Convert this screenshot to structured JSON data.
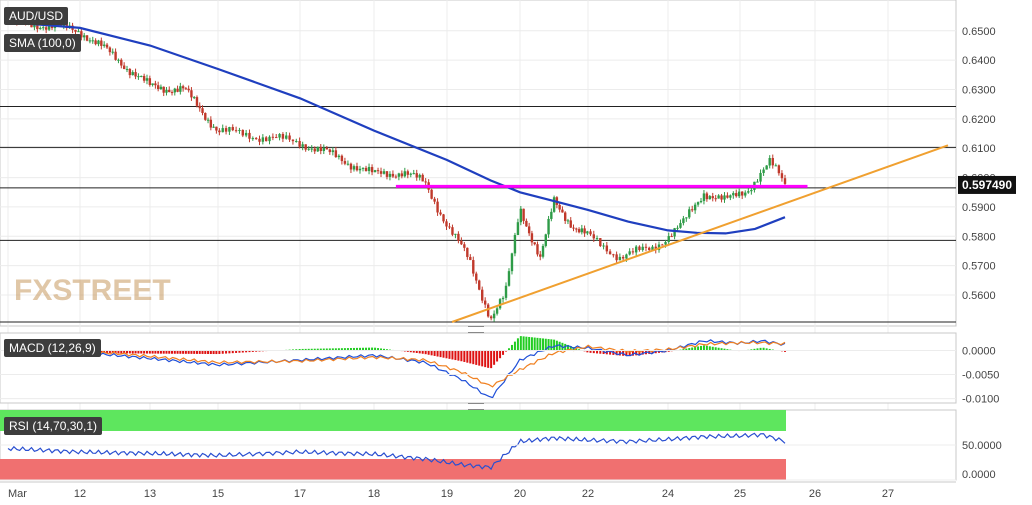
{
  "colors": {
    "price_up": "#2e9b47",
    "price_down": "#c0392b",
    "sma": "#1f3fbf",
    "trendline": "#f0a030",
    "resistance": "#ff00ff",
    "macd_line": "#1f4fd8",
    "signal_line": "#f08020",
    "hist_pos": "#22cc22",
    "hist_neg": "#dd1111",
    "rsi_line": "#2a4fd0",
    "rsi_overbought_zone": "#5ee65e",
    "rsi_oversold_zone": "#f07070",
    "price_badge_bg": "#111111"
  },
  "main_panel": {
    "symbol_label": "AUD/USD",
    "sma_label": "SMA (100,0)",
    "watermark": "FXSTREET",
    "current_price": "0.597490",
    "y_ticks": [
      "0.6500",
      "0.6400",
      "0.6300",
      "0.6200",
      "0.6100",
      "0.6000",
      "0.5900",
      "0.5800",
      "0.5700",
      "0.5600"
    ]
  },
  "macd_panel": {
    "label": "MACD (12,26,9)",
    "y_ticks": [
      "0.0000",
      "-0.0050",
      "-0.0100"
    ]
  },
  "rsi_panel": {
    "label": "RSI (14,70,30,1)",
    "y_ticks": [
      "50.0000",
      "0.0000"
    ]
  },
  "x_axis": {
    "ticks": [
      "Mar",
      "12",
      "13",
      "15",
      "17",
      "18",
      "19",
      "20",
      "22",
      "24",
      "25",
      "26",
      "27"
    ]
  },
  "chart_data": [
    {
      "type": "candlestick",
      "title": "AUD/USD",
      "ylim": [
        0.5508,
        0.653
      ],
      "x": [
        "Mar",
        "12",
        "13",
        "15",
        "17",
        "18",
        "19",
        "20",
        "22",
        "24",
        "25",
        "26",
        "27"
      ],
      "close_path": [
        [
          0.0,
          0.6528
        ],
        [
          0.5,
          0.652
        ],
        [
          1.0,
          0.65
        ],
        [
          1.5,
          0.641
        ],
        [
          2.0,
          0.631
        ],
        [
          2.5,
          0.63
        ],
        [
          3.0,
          0.616
        ],
        [
          3.5,
          0.614
        ],
        [
          4.0,
          0.612
        ],
        [
          4.5,
          0.607
        ],
        [
          5.0,
          0.601
        ],
        [
          5.4,
          0.602
        ],
        [
          5.7,
          0.598
        ],
        [
          6.0,
          0.584
        ],
        [
          6.3,
          0.572
        ],
        [
          6.6,
          0.552
        ],
        [
          6.8,
          0.56
        ],
        [
          7.0,
          0.59
        ],
        [
          7.3,
          0.572
        ],
        [
          7.5,
          0.592
        ],
        [
          7.8,
          0.583
        ],
        [
          8.0,
          0.58
        ],
        [
          8.4,
          0.573
        ],
        [
          8.8,
          0.576
        ],
        [
          9.2,
          0.584
        ],
        [
          9.5,
          0.595
        ],
        [
          9.8,
          0.592
        ],
        [
          10.1,
          0.596
        ],
        [
          10.4,
          0.605
        ],
        [
          10.55,
          0.6
        ],
        [
          10.6,
          0.5975
        ]
      ],
      "sma_100": [
        [
          0.0,
          0.653
        ],
        [
          1.0,
          0.651
        ],
        [
          2.0,
          0.645
        ],
        [
          3.0,
          0.637
        ],
        [
          4.0,
          0.627
        ],
        [
          5.0,
          0.616
        ],
        [
          6.0,
          0.606
        ],
        [
          6.6,
          0.599
        ],
        [
          7.0,
          0.595
        ],
        [
          7.5,
          0.592
        ],
        [
          8.0,
          0.589
        ],
        [
          8.5,
          0.585
        ],
        [
          9.0,
          0.582
        ],
        [
          9.4,
          0.5812
        ],
        [
          9.8,
          0.581
        ],
        [
          10.2,
          0.5825
        ],
        [
          10.6,
          0.5865
        ]
      ],
      "trendline": {
        "from": [
          "19",
          0.5508
        ],
        "to": [
          "27",
          0.611
        ]
      },
      "resistance": 0.597,
      "horizontal_levels": [
        0.6242,
        0.6103,
        0.5965,
        0.5786,
        0.5508
      ],
      "current_price": 0.59749
    },
    {
      "type": "line",
      "title": "MACD (12,26,9)",
      "ylim": [
        -0.0105,
        0.003
      ],
      "macd": [
        [
          0,
          0.0005
        ],
        [
          1.5,
          -0.001
        ],
        [
          3,
          -0.003
        ],
        [
          4,
          -0.002
        ],
        [
          5,
          -0.001
        ],
        [
          5.7,
          -0.0025
        ],
        [
          6.2,
          -0.006
        ],
        [
          6.6,
          -0.01
        ],
        [
          7.0,
          -0.002
        ],
        [
          7.5,
          0.001
        ],
        [
          8,
          0.0005
        ],
        [
          8.5,
          -0.001
        ],
        [
          9,
          0.0
        ],
        [
          9.5,
          0.002
        ],
        [
          10,
          0.0015
        ],
        [
          10.3,
          0.002
        ],
        [
          10.6,
          0.0012
        ]
      ],
      "signal": [
        [
          0,
          0.0002
        ],
        [
          1.5,
          -0.0006
        ],
        [
          3,
          -0.0025
        ],
        [
          4,
          -0.0022
        ],
        [
          5,
          -0.0014
        ],
        [
          5.7,
          -0.002
        ],
        [
          6.2,
          -0.0045
        ],
        [
          6.6,
          -0.0075
        ],
        [
          7.0,
          -0.004
        ],
        [
          7.5,
          -0.0005
        ],
        [
          8,
          0.0008
        ],
        [
          8.5,
          -0.0002
        ],
        [
          9,
          0.0002
        ],
        [
          9.5,
          0.0013
        ],
        [
          10,
          0.0016
        ],
        [
          10.3,
          0.0016
        ],
        [
          10.6,
          0.0014
        ]
      ]
    },
    {
      "type": "line",
      "title": "RSI (14,70,30,1)",
      "ylim": [
        0,
        100
      ],
      "rsi": [
        [
          0,
          45
        ],
        [
          1,
          40
        ],
        [
          2,
          38
        ],
        [
          3,
          35
        ],
        [
          4,
          40
        ],
        [
          5,
          37
        ],
        [
          5.7,
          30
        ],
        [
          6.2,
          22
        ],
        [
          6.6,
          18
        ],
        [
          7.0,
          55
        ],
        [
          7.5,
          60
        ],
        [
          8,
          57
        ],
        [
          8.5,
          55
        ],
        [
          9,
          58
        ],
        [
          9.5,
          62
        ],
        [
          10,
          63
        ],
        [
          10.3,
          65
        ],
        [
          10.6,
          55
        ]
      ]
    }
  ]
}
